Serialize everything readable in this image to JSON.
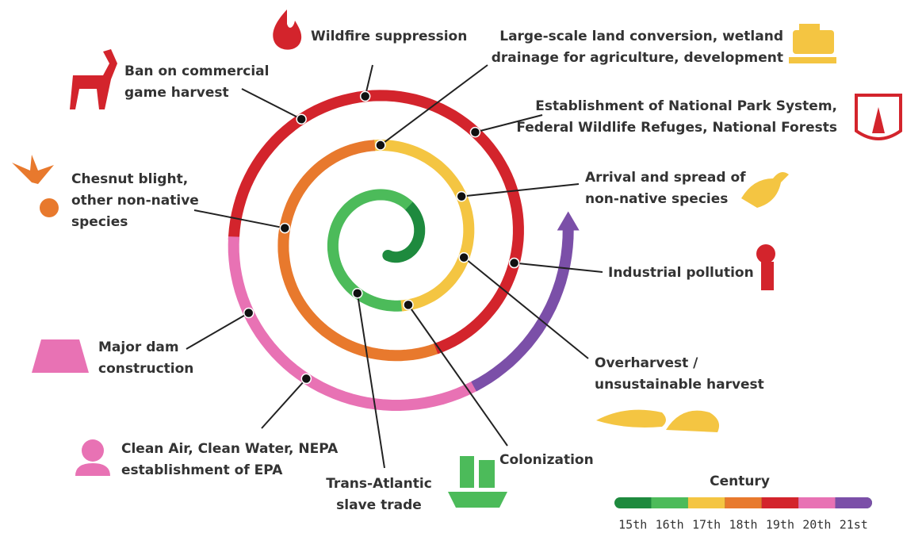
{
  "events": [
    {
      "lines": [
        "Wildfire suppression"
      ]
    },
    {
      "lines": [
        "Large-scale land conversion, wetland",
        "drainage for agriculture, development"
      ]
    },
    {
      "lines": [
        "Establishment of National Park System,",
        "Federal Wildlife Refuges, National Forests"
      ]
    },
    {
      "lines": [
        "Arrival and spread of",
        "non-native species"
      ]
    },
    {
      "lines": [
        "Industrial pollution"
      ]
    },
    {
      "lines": [
        "Overharvest /",
        "unsustainable harvest"
      ]
    },
    {
      "lines": [
        "Colonization"
      ]
    },
    {
      "lines": [
        "Trans-Atlantic",
        "slave trade"
      ]
    },
    {
      "lines": [
        "Major dam",
        "construction"
      ]
    },
    {
      "lines": [
        "Clean Air, Clean Water, NEPA",
        "establishment of EPA"
      ]
    },
    {
      "lines": [
        "Chesnut blight,",
        "other non-native",
        "species"
      ]
    },
    {
      "lines": [
        "Ban on commercial",
        "game harvest"
      ]
    }
  ],
  "legend": {
    "title": "Century",
    "items": [
      {
        "label": "15th",
        "color": "#1e8a3e"
      },
      {
        "label": "16th",
        "color": "#4cbb5a"
      },
      {
        "label": "17th",
        "color": "#f4c542"
      },
      {
        "label": "18th",
        "color": "#e8792d"
      },
      {
        "label": "19th",
        "color": "#d3242c"
      },
      {
        "label": "20th",
        "color": "#e872b4"
      },
      {
        "label": "21st",
        "color": "#7b4fa8"
      }
    ]
  }
}
